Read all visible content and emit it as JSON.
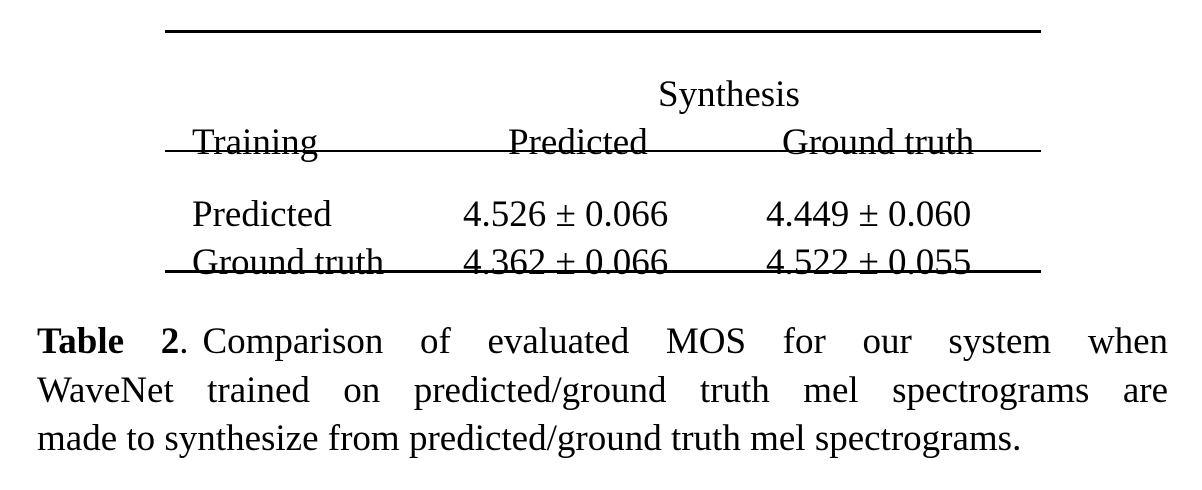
{
  "table": {
    "group_header": "Synthesis",
    "columns": [
      "Training",
      "Predicted",
      "Ground truth"
    ],
    "rows": [
      {
        "label": "Predicted",
        "values": [
          "4.526 ± 0.066",
          "4.449 ± 0.060"
        ]
      },
      {
        "label": "Ground truth",
        "values": [
          "4.362 ± 0.066",
          "4.522 ± 0.055"
        ]
      }
    ]
  },
  "caption": {
    "label": "Table 2",
    "label_punct": ".",
    "lines": [
      "Comparison of evaluated MOS for our system when",
      "WaveNet trained on predicted/ground truth mel spectrograms are",
      "made to synthesize from predicted/ground truth mel spectrograms."
    ]
  }
}
